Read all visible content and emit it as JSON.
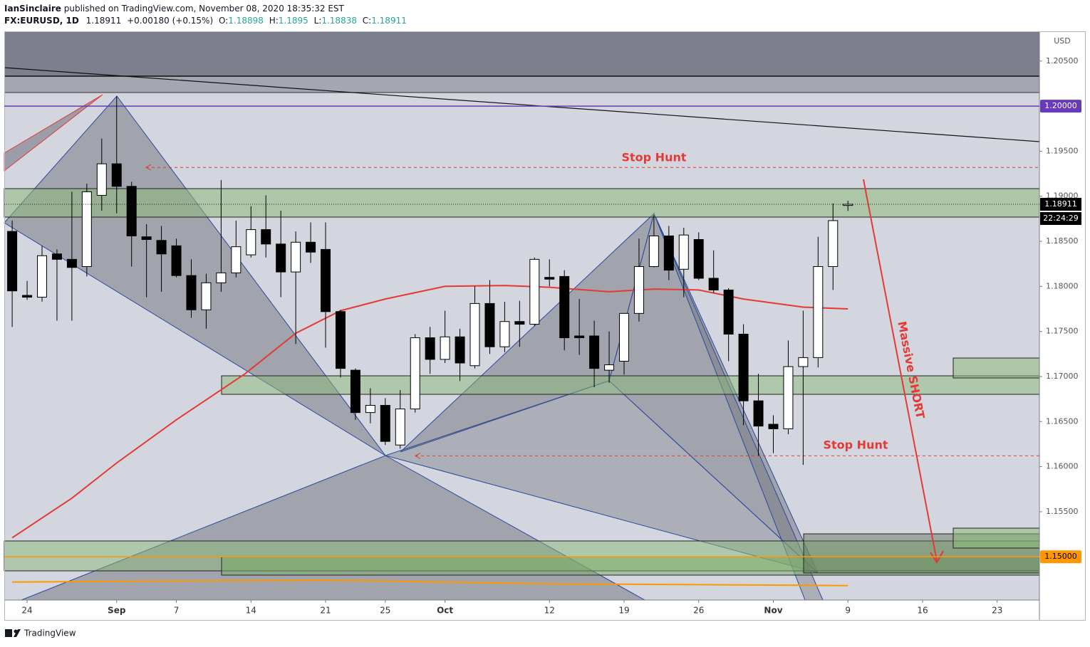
{
  "chart_data": {
    "type": "candlestick",
    "author": "IanSinclaire",
    "title": "published on TradingView.com, November 08, 2020 18:35:32 EST",
    "symbol": "FX:EURUSD, 1D",
    "change": "+0.00180 (+0.15%)",
    "ohlc_labels": [
      "O:",
      "H:",
      "L:",
      "C:"
    ],
    "y_unit": "USD",
    "countdown": "22:24:29",
    "brand": "TradingView",
    "up_color": "#ffffff",
    "down_color": "#000000",
    "x": [
      -1,
      0,
      1,
      2,
      3,
      4,
      5,
      6,
      7,
      8,
      9,
      10,
      11,
      12,
      13,
      14,
      15,
      16,
      17,
      18,
      19,
      20,
      21,
      22,
      23,
      24,
      25,
      26,
      27,
      28,
      29,
      30,
      31,
      32,
      33,
      34,
      35,
      36,
      37,
      38,
      39,
      40,
      41,
      42,
      43,
      44,
      45,
      46,
      47,
      48,
      49,
      50,
      51,
      52,
      53,
      54,
      55
    ],
    "open": [
      1.1861,
      1.179,
      1.1788,
      1.1836,
      1.183,
      1.1822,
      1.1901,
      1.1936,
      1.1911,
      1.1855,
      1.1851,
      1.1845,
      1.1812,
      1.1774,
      1.1804,
      1.1815,
      1.1835,
      1.1863,
      1.1847,
      1.1816,
      1.1849,
      1.1841,
      1.1772,
      1.1707,
      1.166,
      1.1668,
      1.1624,
      1.1664,
      1.1743,
      1.1719,
      1.1744,
      1.1712,
      1.1781,
      1.1733,
      1.1761,
      1.1758,
      1.181,
      1.1811,
      1.1745,
      1.1745,
      1.1707,
      1.1717,
      1.177,
      1.1822,
      1.1856,
      1.1819,
      1.1852,
      1.1809,
      1.1796,
      1.1747,
      1.1673,
      1.1647,
      1.1642,
      1.1711,
      1.1721,
      1.1822,
      1.18898
    ],
    "high": [
      1.1873,
      1.1806,
      1.1845,
      1.1841,
      1.1905,
      1.1914,
      1.1964,
      1.2011,
      1.1916,
      1.1869,
      1.1867,
      1.1853,
      1.183,
      1.1814,
      1.1918,
      1.1873,
      1.1889,
      1.1901,
      1.1884,
      1.1861,
      1.1871,
      1.1871,
      1.1774,
      1.1709,
      1.1687,
      1.1676,
      1.1685,
      1.1747,
      1.1755,
      1.1773,
      1.1753,
      1.18,
      1.1807,
      1.1783,
      1.1784,
      1.1832,
      1.183,
      1.1818,
      1.1786,
      1.1762,
      1.175,
      1.177,
      1.1853,
      1.1879,
      1.1867,
      1.1865,
      1.186,
      1.184,
      1.1798,
      1.1758,
      1.1703,
      1.1657,
      1.174,
      1.1773,
      1.1855,
      1.1892,
      1.1895
    ],
    "low": [
      1.1755,
      1.1785,
      1.1783,
      1.1762,
      1.1762,
      1.1811,
      1.1884,
      1.1881,
      1.1822,
      1.1788,
      1.1794,
      1.181,
      1.1765,
      1.1753,
      1.1794,
      1.181,
      1.1832,
      1.1832,
      1.1788,
      1.1736,
      1.1826,
      1.1732,
      1.1699,
      1.1652,
      1.1648,
      1.1624,
      1.162,
      1.166,
      1.1703,
      1.1715,
      1.1695,
      1.1709,
      1.1725,
      1.1727,
      1.1733,
      1.1756,
      1.18,
      1.1729,
      1.1724,
      1.1688,
      1.1693,
      1.1702,
      1.1761,
      1.1821,
      1.1807,
      1.1788,
      1.1807,
      1.1793,
      1.1717,
      1.1646,
      1.1612,
      1.1615,
      1.1636,
      1.1602,
      1.171,
      1.1796,
      1.18838
    ],
    "close": [
      1.1795,
      1.1788,
      1.1834,
      1.183,
      1.1821,
      1.1905,
      1.1936,
      1.1911,
      1.1856,
      1.1852,
      1.1836,
      1.1812,
      1.1774,
      1.1804,
      1.1815,
      1.1844,
      1.1863,
      1.1847,
      1.1816,
      1.1849,
      1.1838,
      1.1772,
      1.1709,
      1.166,
      1.1668,
      1.1628,
      1.1664,
      1.1743,
      1.1719,
      1.1744,
      1.1715,
      1.1781,
      1.1733,
      1.1761,
      1.1758,
      1.183,
      1.1808,
      1.1743,
      1.1743,
      1.1709,
      1.1713,
      1.177,
      1.1822,
      1.1856,
      1.1818,
      1.1857,
      1.1809,
      1.1796,
      1.1747,
      1.1673,
      1.1645,
      1.1642,
      1.1711,
      1.1721,
      1.1822,
      1.1873,
      1.18911
    ],
    "xlim": [
      -1.53,
      67.83
    ],
    "xticks": [
      {
        "value": 0,
        "label": "24"
      },
      {
        "value": 6,
        "label": "Sep"
      },
      {
        "value": 10,
        "label": "7"
      },
      {
        "value": 15,
        "label": "14"
      },
      {
        "value": 20,
        "label": "21"
      },
      {
        "value": 24,
        "label": "25"
      },
      {
        "value": 28,
        "label": "Oct"
      },
      {
        "value": 35,
        "label": "12"
      },
      {
        "value": 40,
        "label": "19"
      },
      {
        "value": 45,
        "label": "26"
      },
      {
        "value": 50,
        "label": "Nov"
      },
      {
        "value": 55,
        "label": "9"
      },
      {
        "value": 60,
        "label": "16"
      },
      {
        "value": 65,
        "label": "23"
      }
    ],
    "ylim": [
      1.1452,
      1.2083
    ],
    "yticks": [
      {
        "value": 1.205,
        "label": "1.20500"
      },
      {
        "value": 1.195,
        "label": "1.19500"
      },
      {
        "value": 1.19,
        "label": "1.19000"
      },
      {
        "value": 1.185,
        "label": "1.18500"
      },
      {
        "value": 1.18,
        "label": "1.18000"
      },
      {
        "value": 1.175,
        "label": "1.17500"
      },
      {
        "value": 1.17,
        "label": "1.17000"
      },
      {
        "value": 1.165,
        "label": "1.16500"
      },
      {
        "value": 1.16,
        "label": "1.16000"
      },
      {
        "value": 1.155,
        "label": "1.15500"
      }
    ],
    "price_lines": [
      {
        "value": 1.2,
        "label": "1.20000",
        "color": "#673ab7",
        "text_color": "#ffffff"
      },
      {
        "value": 1.15,
        "label": "1.15000",
        "color": "#ff9800",
        "text_color": "#000000"
      }
    ],
    "annotations": [
      {
        "text": "Stop Hunt",
        "value": 1.1932
      },
      {
        "text": "Stop Hunt",
        "value": 1.1612
      },
      {
        "text": "Massive SHORT"
      }
    ],
    "overlays": [
      {
        "color": "#e53935",
        "x": [
          -1,
          3,
          6,
          10,
          14.6,
          18,
          21,
          24,
          28,
          32,
          35,
          39,
          42,
          45,
          48,
          52,
          55
        ],
        "values": [
          1.1521,
          1.1565,
          1.1604,
          1.1652,
          1.1703,
          1.1748,
          1.1773,
          1.1786,
          1.18,
          1.1801,
          1.1799,
          1.1794,
          1.1797,
          1.1796,
          1.1786,
          1.1777,
          1.1775
        ]
      },
      {
        "color": "#ff9800",
        "x": [
          -1,
          20,
          35,
          55
        ],
        "values": [
          1.1472,
          1.1474,
          1.147,
          1.1468
        ]
      }
    ]
  }
}
